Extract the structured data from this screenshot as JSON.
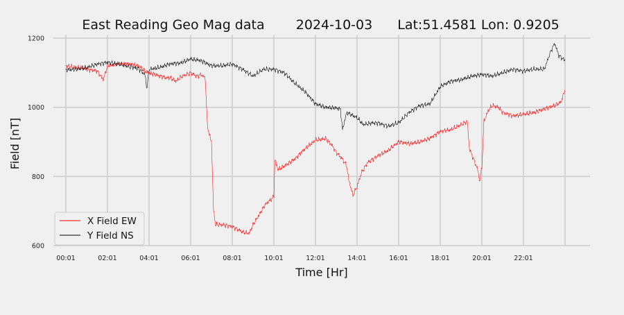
{
  "chart_data": {
    "type": "line",
    "title_parts": [
      "East Reading Geo Mag data",
      "2024-10-03",
      "Lat:51.4581  Lon: 0.9205"
    ],
    "xlabel": "Time  [Hr]",
    "ylabel": "Field  [nT]",
    "xlim": [
      -0.6,
      25.2
    ],
    "ylim": [
      600,
      1210
    ],
    "x_ticks": [
      0,
      2,
      4,
      6,
      8,
      10,
      12,
      14,
      16,
      18,
      20,
      22,
      24
    ],
    "x_tick_labels": [
      "00:01",
      "02:01",
      "04:01",
      "06:01",
      "08:01",
      "10:01",
      "12:01",
      "14:01",
      "16:01",
      "18:01",
      "20:01",
      "22:01",
      ""
    ],
    "y_ticks": [
      600,
      800,
      1000,
      1200
    ],
    "y_tick_labels": [
      "600",
      "800",
      "1000",
      "1200"
    ],
    "grid": true,
    "legend_position": "lower-left",
    "series": [
      {
        "name": "X Field EW",
        "color": "#ff0000",
        "points": [
          [
            0,
            1120
          ],
          [
            0.5,
            1115
          ],
          [
            1,
            1110
          ],
          [
            1.5,
            1105
          ],
          [
            1.8,
            1080
          ],
          [
            2,
            1120
          ],
          [
            2.5,
            1125
          ],
          [
            3,
            1125
          ],
          [
            3.5,
            1120
          ],
          [
            3.8,
            1105
          ],
          [
            4,
            1100
          ],
          [
            4.3,
            1095
          ],
          [
            4.8,
            1085
          ],
          [
            5,
            1085
          ],
          [
            5.3,
            1075
          ],
          [
            5.6,
            1090
          ],
          [
            6,
            1100
          ],
          [
            6.3,
            1090
          ],
          [
            6.5,
            1095
          ],
          [
            6.7,
            1085
          ],
          [
            6.8,
            950
          ],
          [
            6.9,
            920
          ],
          [
            7,
            900
          ],
          [
            7.05,
            800
          ],
          [
            7.1,
            700
          ],
          [
            7.2,
            660
          ],
          [
            7.5,
            660
          ],
          [
            8,
            655
          ],
          [
            8.5,
            640
          ],
          [
            8.8,
            635
          ],
          [
            9,
            660
          ],
          [
            9.3,
            690
          ],
          [
            9.6,
            720
          ],
          [
            9.9,
            735
          ],
          [
            10,
            745
          ],
          [
            10.05,
            850
          ],
          [
            10.2,
            820
          ],
          [
            10.5,
            830
          ],
          [
            11,
            850
          ],
          [
            11.5,
            880
          ],
          [
            12,
            905
          ],
          [
            12.5,
            910
          ],
          [
            12.8,
            890
          ],
          [
            13,
            870
          ],
          [
            13.3,
            850
          ],
          [
            13.5,
            830
          ],
          [
            13.6,
            790
          ],
          [
            13.8,
            745
          ],
          [
            14,
            770
          ],
          [
            14.2,
            810
          ],
          [
            14.5,
            840
          ],
          [
            15,
            860
          ],
          [
            15.5,
            875
          ],
          [
            16,
            900
          ],
          [
            16.5,
            895
          ],
          [
            17,
            900
          ],
          [
            17.5,
            910
          ],
          [
            18,
            930
          ],
          [
            18.5,
            935
          ],
          [
            19,
            950
          ],
          [
            19.3,
            960
          ],
          [
            19.4,
            880
          ],
          [
            19.6,
            850
          ],
          [
            19.8,
            820
          ],
          [
            19.9,
            785
          ],
          [
            20,
            830
          ],
          [
            20.1,
            960
          ],
          [
            20.3,
            990
          ],
          [
            20.5,
            1005
          ],
          [
            20.8,
            1000
          ],
          [
            21,
            985
          ],
          [
            21.5,
            975
          ],
          [
            22,
            980
          ],
          [
            22.5,
            985
          ],
          [
            23,
            995
          ],
          [
            23.5,
            1005
          ],
          [
            23.8,
            1015
          ],
          [
            24,
            1050
          ]
        ]
      },
      {
        "name": "Y Field NS",
        "color": "#000000",
        "points": [
          [
            0,
            1108
          ],
          [
            0.5,
            1110
          ],
          [
            1,
            1115
          ],
          [
            1.5,
            1125
          ],
          [
            2,
            1130
          ],
          [
            2.5,
            1125
          ],
          [
            3,
            1118
          ],
          [
            3.5,
            1112
          ],
          [
            3.8,
            1095
          ],
          [
            3.9,
            1055
          ],
          [
            4,
            1110
          ],
          [
            4.5,
            1115
          ],
          [
            5,
            1125
          ],
          [
            5.5,
            1128
          ],
          [
            6,
            1140
          ],
          [
            6.5,
            1135
          ],
          [
            7,
            1120
          ],
          [
            7.5,
            1120
          ],
          [
            8,
            1125
          ],
          [
            8.5,
            1110
          ],
          [
            9,
            1090
          ],
          [
            9.5,
            1110
          ],
          [
            10,
            1110
          ],
          [
            10.5,
            1100
          ],
          [
            11,
            1070
          ],
          [
            11.5,
            1045
          ],
          [
            12,
            1010
          ],
          [
            12.5,
            1000
          ],
          [
            13,
            998
          ],
          [
            13.2,
            995
          ],
          [
            13.3,
            935
          ],
          [
            13.5,
            985
          ],
          [
            14,
            970
          ],
          [
            14.3,
            950
          ],
          [
            14.7,
            955
          ],
          [
            15,
            955
          ],
          [
            15.5,
            945
          ],
          [
            16,
            955
          ],
          [
            16.5,
            985
          ],
          [
            17,
            1005
          ],
          [
            17.5,
            1010
          ],
          [
            18,
            1060
          ],
          [
            18.5,
            1075
          ],
          [
            19,
            1080
          ],
          [
            19.5,
            1090
          ],
          [
            20,
            1095
          ],
          [
            20.5,
            1090
          ],
          [
            21,
            1100
          ],
          [
            21.5,
            1110
          ],
          [
            22,
            1105
          ],
          [
            22.5,
            1110
          ],
          [
            23,
            1110
          ],
          [
            23.3,
            1160
          ],
          [
            23.5,
            1185
          ],
          [
            23.7,
            1150
          ],
          [
            24,
            1135
          ]
        ]
      }
    ]
  }
}
